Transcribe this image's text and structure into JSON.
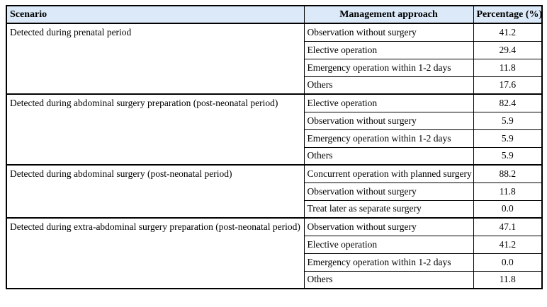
{
  "table": {
    "header_bg": "#dbe9f8",
    "border_color": "#000000",
    "headers": {
      "scenario": "Scenario",
      "approach": "Management approach",
      "percentage": "Percentage (%)"
    },
    "groups": [
      {
        "scenario": "Detected during prenatal period",
        "rows": [
          {
            "approach": "Observation without surgery",
            "percentage": "41.2"
          },
          {
            "approach": "Elective operation",
            "percentage": "29.4"
          },
          {
            "approach": "Emergency operation within 1-2 days",
            "percentage": "11.8"
          },
          {
            "approach": "Others",
            "percentage": "17.6"
          }
        ]
      },
      {
        "scenario": "Detected during abdominal surgery preparation (post-neonatal period)",
        "rows": [
          {
            "approach": "Elective operation",
            "percentage": "82.4"
          },
          {
            "approach": "Observation without surgery",
            "percentage": "5.9"
          },
          {
            "approach": "Emergency operation within 1-2 days",
            "percentage": "5.9"
          },
          {
            "approach": "Others",
            "percentage": "5.9"
          }
        ]
      },
      {
        "scenario": "Detected during abdominal surgery (post-neonatal period)",
        "rows": [
          {
            "approach": "Concurrent operation with planned surgery",
            "percentage": "88.2"
          },
          {
            "approach": "Observation without surgery",
            "percentage": "11.8"
          },
          {
            "approach": "Treat later as separate surgery",
            "percentage": "0.0"
          }
        ]
      },
      {
        "scenario": "Detected during extra-abdominal surgery preparation (post-neonatal period)",
        "rows": [
          {
            "approach": "Observation without surgery",
            "percentage": "47.1"
          },
          {
            "approach": "Elective operation",
            "percentage": "41.2"
          },
          {
            "approach": "Emergency operation within 1-2 days",
            "percentage": "0.0"
          },
          {
            "approach": "Others",
            "percentage": "11.8"
          }
        ]
      }
    ]
  }
}
